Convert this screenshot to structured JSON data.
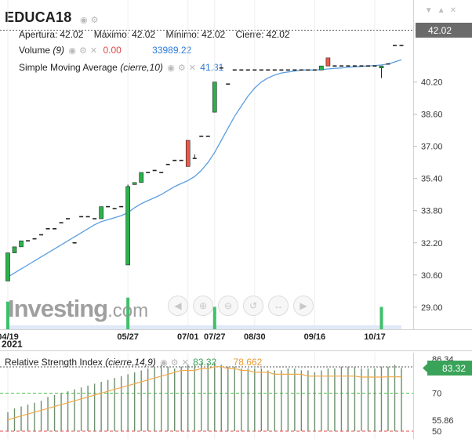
{
  "instrument": {
    "symbol": "EDUCA18",
    "open_label": "Apertura:",
    "open_value": "42.02",
    "high_label": "Máximo:",
    "high_value": "42.02",
    "low_label": "Mínimo:",
    "low_value": "42.02",
    "close_label": "Cierre:",
    "close_value": "42.02",
    "last_price": "42.02"
  },
  "volume_indicator": {
    "label": "Volume",
    "param": "(9)",
    "value_red": "0.00",
    "value_blue": "33989.22"
  },
  "sma_indicator": {
    "label": "Simple Moving Average",
    "param": "(cierre,10)",
    "value": "41.31"
  },
  "rsi_indicator": {
    "label": "Relative Strength Index",
    "param": "(cierre,14,9)",
    "value": "83.32",
    "signal_value": "78.662",
    "last_badge": "83.32"
  },
  "logo": {
    "text": "Investing",
    "suffix": ".com"
  },
  "x_axis": {
    "year_label": "2021",
    "tick_labels": [
      "04/19",
      "05/27",
      "07/01",
      "07/27",
      "08/30",
      "09/16",
      "10/17"
    ]
  },
  "price_axis": {
    "tick_labels": [
      "40.20",
      "38.60",
      "37.00",
      "35.40",
      "33.80",
      "32.20",
      "30.60",
      "29.00"
    ]
  },
  "rsi_axis": {
    "tick_labels": [
      "86.34",
      "70",
      "55.86",
      "50"
    ]
  },
  "icons": [
    "eye-icon",
    "gear-icon",
    "close-icon",
    "chevron-down-icon",
    "bell-icon",
    "zoom-icon",
    "back-arrow-icon"
  ],
  "colors": {
    "up_candle": "#2bb24c",
    "down_candle": "#ea5a4a",
    "sma_line": "#5a9ee0",
    "rsi_line": "#f0a94a",
    "rsi_bars": "#6d8f6d",
    "volume_bar": "#3ec06a",
    "value_red": "#e04848",
    "value_blue": "#2d7bd8",
    "last_price_badge": "#6b6b6b",
    "rsi_badge": "#3aa35a"
  },
  "chart_data": [
    {
      "type": "candlestick",
      "title": "EDUCA18",
      "y_tick_labels": [
        "40.20",
        "38.60",
        "37.00",
        "35.40",
        "33.80",
        "32.20",
        "30.60",
        "29.00"
      ],
      "ylim": [
        27.9,
        42.8
      ],
      "x_tick_labels": [
        "04/19",
        "05/27",
        "07/01",
        "07/27",
        "08/30",
        "09/16",
        "10/17"
      ],
      "candles": [
        {
          "o": 30.3,
          "c": 31.7,
          "h": 31.7,
          "l": 30.3
        },
        {
          "o": 31.7,
          "c": 32.0,
          "h": 32.0,
          "l": 31.7
        },
        {
          "o": 32.0,
          "c": 32.3,
          "h": 32.3,
          "l": 32.0
        },
        {
          "o": 32.3,
          "c": 32.3,
          "h": 32.3,
          "l": 32.3
        },
        {
          "o": 32.4,
          "c": 32.4,
          "h": 32.4,
          "l": 32.4
        },
        {
          "o": 32.6,
          "c": 32.6,
          "h": 32.6,
          "l": 32.6
        },
        {
          "o": 32.9,
          "c": 32.9,
          "h": 32.9,
          "l": 32.9
        },
        {
          "o": 32.9,
          "c": 32.9,
          "h": 32.9,
          "l": 32.9
        },
        {
          "o": 33.2,
          "c": 33.2,
          "h": 33.2,
          "l": 33.2
        },
        {
          "o": 33.4,
          "c": 33.4,
          "h": 33.4,
          "l": 33.4
        },
        {
          "o": 32.2,
          "c": 32.2,
          "h": 32.2,
          "l": 32.2
        },
        {
          "o": 33.5,
          "c": 33.5,
          "h": 33.5,
          "l": 33.5
        },
        {
          "o": 33.5,
          "c": 33.5,
          "h": 33.5,
          "l": 33.5
        },
        {
          "o": 33.4,
          "c": 33.4,
          "h": 33.4,
          "l": 33.4
        },
        {
          "o": 33.4,
          "c": 34.0,
          "h": 34.0,
          "l": 33.4
        },
        {
          "o": 34.0,
          "c": 34.0,
          "h": 34.0,
          "l": 34.0
        },
        {
          "o": 33.9,
          "c": 33.9,
          "h": 33.9,
          "l": 33.9
        },
        {
          "o": 34.0,
          "c": 34.0,
          "h": 34.0,
          "l": 34.0
        },
        {
          "o": 31.1,
          "c": 35.0,
          "h": 35.1,
          "l": 31.1
        },
        {
          "o": 35.1,
          "c": 35.2,
          "h": 35.2,
          "l": 35.1
        },
        {
          "o": 35.2,
          "c": 35.7,
          "h": 35.7,
          "l": 35.2
        },
        {
          "o": 35.7,
          "c": 35.7,
          "h": 35.7,
          "l": 35.7
        },
        {
          "o": 35.8,
          "c": 35.8,
          "h": 35.8,
          "l": 35.8
        },
        {
          "o": 35.7,
          "c": 35.7,
          "h": 35.7,
          "l": 35.7
        },
        {
          "o": 36.1,
          "c": 36.1,
          "h": 36.1,
          "l": 36.1
        },
        {
          "o": 36.3,
          "c": 36.3,
          "h": 36.3,
          "l": 36.3
        },
        {
          "o": 36.3,
          "c": 36.3,
          "h": 36.3,
          "l": 36.3
        },
        {
          "o": 37.3,
          "c": 36.0,
          "h": 37.3,
          "l": 36.0
        },
        {
          "o": 36.4,
          "c": 36.4,
          "h": 36.6,
          "l": 36.4
        },
        {
          "o": 37.5,
          "c": 37.5,
          "h": 37.5,
          "l": 37.5
        },
        {
          "o": 37.5,
          "c": 37.5,
          "h": 37.5,
          "l": 37.5
        },
        {
          "o": 38.7,
          "c": 40.2,
          "h": 40.2,
          "l": 38.7
        },
        {
          "o": 40.9,
          "c": 40.9,
          "h": 40.9,
          "l": 40.9
        },
        {
          "o": 40.1,
          "c": 40.1,
          "h": 40.1,
          "l": 40.1
        },
        {
          "o": 40.8,
          "c": 40.8,
          "h": 40.8,
          "l": 40.8
        },
        {
          "o": 40.8,
          "c": 40.8,
          "h": 40.8,
          "l": 40.8
        },
        {
          "o": 40.8,
          "c": 40.8,
          "h": 40.8,
          "l": 40.8
        },
        {
          "o": 40.8,
          "c": 40.8,
          "h": 40.8,
          "l": 40.8
        },
        {
          "o": 40.8,
          "c": 40.8,
          "h": 40.8,
          "l": 40.8
        },
        {
          "o": 40.8,
          "c": 40.8,
          "h": 40.8,
          "l": 40.8
        },
        {
          "o": 40.8,
          "c": 40.8,
          "h": 40.8,
          "l": 40.8
        },
        {
          "o": 40.8,
          "c": 40.8,
          "h": 40.8,
          "l": 40.8
        },
        {
          "o": 40.8,
          "c": 40.8,
          "h": 40.8,
          "l": 40.8
        },
        {
          "o": 40.8,
          "c": 40.8,
          "h": 40.8,
          "l": 40.8
        },
        {
          "o": 40.8,
          "c": 40.8,
          "h": 40.8,
          "l": 40.8
        },
        {
          "o": 40.8,
          "c": 40.8,
          "h": 40.8,
          "l": 40.8
        },
        {
          "o": 40.8,
          "c": 40.8,
          "h": 40.8,
          "l": 40.8
        },
        {
          "o": 40.8,
          "c": 41.0,
          "h": 41.0,
          "l": 40.8
        },
        {
          "o": 41.4,
          "c": 41.0,
          "h": 41.4,
          "l": 41.0
        },
        {
          "o": 41.0,
          "c": 41.0,
          "h": 41.0,
          "l": 41.0
        },
        {
          "o": 41.0,
          "c": 41.0,
          "h": 41.0,
          "l": 41.0
        },
        {
          "o": 41.0,
          "c": 41.0,
          "h": 41.0,
          "l": 41.0
        },
        {
          "o": 41.0,
          "c": 41.0,
          "h": 41.0,
          "l": 41.0
        },
        {
          "o": 41.0,
          "c": 41.0,
          "h": 41.0,
          "l": 41.0
        },
        {
          "o": 41.0,
          "c": 41.0,
          "h": 41.0,
          "l": 41.0
        },
        {
          "o": 41.0,
          "c": 41.0,
          "h": 41.0,
          "l": 41.0
        },
        {
          "o": 40.9,
          "c": 41.0,
          "h": 41.0,
          "l": 40.4
        },
        {
          "o": 41.1,
          "c": 41.1,
          "h": 41.1,
          "l": 41.1
        },
        {
          "o": 42.02,
          "c": 42.02,
          "h": 42.02,
          "l": 42.02
        },
        {
          "o": 42.02,
          "c": 42.02,
          "h": 42.02,
          "l": 42.02
        }
      ],
      "sma": {
        "name": "Simple Moving Average",
        "values": [
          30.5,
          30.7,
          30.9,
          31.1,
          31.3,
          31.5,
          31.7,
          31.9,
          32.1,
          32.3,
          32.5,
          32.7,
          32.9,
          33.1,
          33.25,
          33.35,
          33.45,
          33.55,
          33.7,
          33.95,
          34.15,
          34.3,
          34.45,
          34.6,
          34.8,
          35.0,
          35.15,
          35.3,
          35.5,
          35.8,
          36.2,
          36.7,
          37.3,
          37.9,
          38.5,
          39.0,
          39.5,
          39.9,
          40.2,
          40.4,
          40.55,
          40.65,
          40.7,
          40.75,
          40.8,
          40.8,
          40.8,
          40.82,
          40.85,
          40.88,
          40.9,
          40.93,
          40.96,
          40.98,
          41.0,
          41.02,
          41.05,
          41.1,
          41.2,
          41.31
        ]
      }
    },
    {
      "type": "bar",
      "title": "Volume",
      "values": [
        420,
        0,
        0,
        0,
        0,
        0,
        0,
        0,
        0,
        0,
        0,
        0,
        0,
        0,
        0,
        0,
        0,
        0,
        480,
        0,
        0,
        0,
        0,
        0,
        0,
        0,
        0,
        0,
        0,
        0,
        0,
        340,
        0,
        0,
        0,
        0,
        0,
        0,
        0,
        0,
        0,
        0,
        0,
        0,
        0,
        0,
        0,
        0,
        0,
        0,
        0,
        0,
        0,
        0,
        0,
        0,
        340,
        0,
        0,
        0
      ],
      "highlighted_values": [
        0,
        0,
        0,
        0,
        0,
        0,
        0,
        0,
        0,
        0,
        0,
        0,
        0,
        0,
        0,
        0,
        0,
        0,
        0,
        0,
        0,
        0,
        0,
        0,
        0,
        0,
        0,
        0,
        0,
        0,
        0,
        0,
        0,
        0,
        0,
        0,
        0,
        0,
        0,
        0,
        0,
        0,
        0,
        0,
        0,
        0,
        0,
        0,
        0,
        0,
        0,
        0,
        0,
        0,
        0,
        0,
        0,
        0,
        0,
        0
      ]
    },
    {
      "type": "bar",
      "title": "Relative Strength Index",
      "y_tick_labels": [
        "86.34",
        "70",
        "55.86",
        "50"
      ],
      "ylim": [
        50,
        86.34
      ],
      "reference_lines": [
        70,
        50
      ],
      "values": [
        60,
        62,
        63,
        64,
        65,
        66,
        68,
        69,
        70,
        71,
        72,
        73,
        74,
        75,
        76,
        77,
        78,
        79,
        80,
        81,
        82,
        83,
        84,
        85,
        84,
        83,
        84,
        85,
        85,
        86,
        86,
        86,
        85,
        84,
        84,
        83,
        83,
        83,
        83,
        82,
        82,
        82,
        83,
        83,
        82,
        82,
        81,
        82,
        83,
        83,
        84,
        84,
        84,
        83,
        83,
        83,
        84,
        84,
        85,
        83.32
      ],
      "signal": {
        "name": "signal",
        "values": [
          55.9,
          57,
          58,
          59,
          60,
          61,
          62,
          63,
          64,
          65,
          66,
          67,
          68,
          69,
          70,
          71,
          72,
          73,
          74,
          75,
          76,
          77,
          78,
          79,
          80,
          81,
          82,
          82,
          82,
          83,
          83,
          84,
          84,
          83,
          83,
          82,
          82,
          81,
          81,
          81,
          80,
          80,
          80,
          80,
          80,
          79,
          79,
          79,
          79,
          79,
          79,
          79,
          79,
          78.5,
          78.5,
          78.5,
          78.5,
          78.6,
          78.6,
          78.662
        ]
      }
    }
  ]
}
